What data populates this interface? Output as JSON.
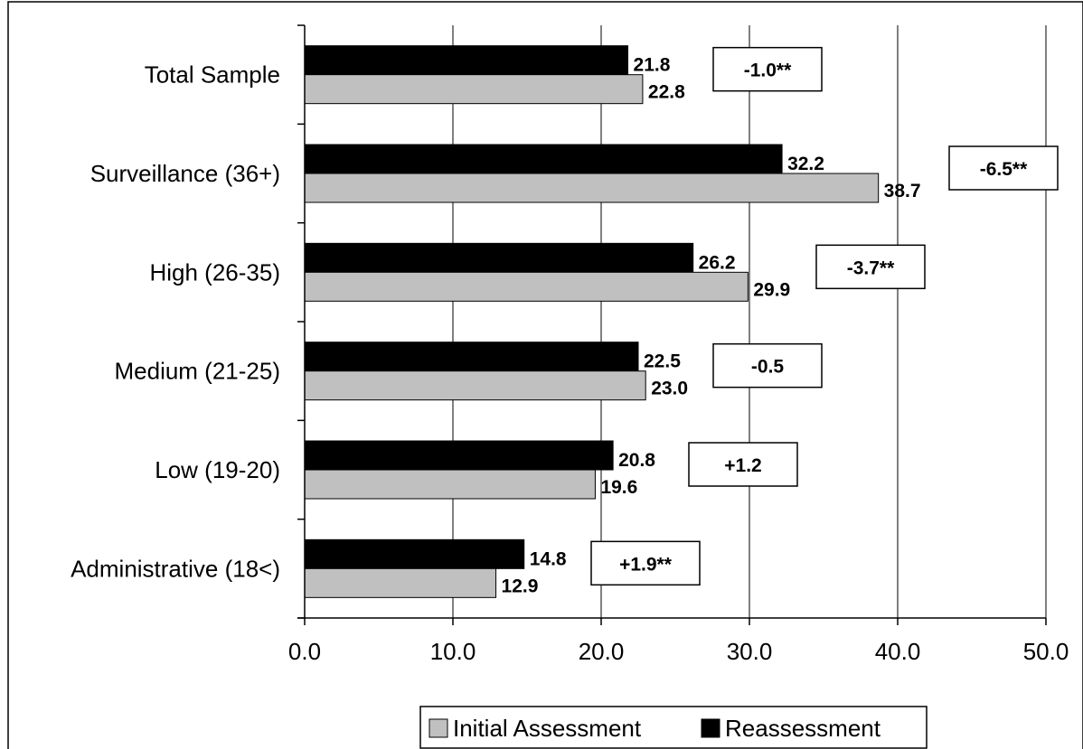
{
  "chart_data": {
    "type": "bar",
    "orientation": "horizontal",
    "categories": [
      "Total Sample",
      "Surveillance (36+)",
      "High (26-35)",
      "Medium (21-25)",
      "Low (19-20)",
      "Administrative (18<)"
    ],
    "series": [
      {
        "name": "Reassessment",
        "color": "#000000",
        "values": [
          21.8,
          32.2,
          26.2,
          22.5,
          20.8,
          14.8
        ],
        "labels": [
          "21.8",
          "32.2",
          "26.2",
          "22.5",
          "20.8",
          "14.8"
        ]
      },
      {
        "name": "Initial Assessment",
        "color": "#c0c0c0",
        "values": [
          22.8,
          38.7,
          29.9,
          23.0,
          19.6,
          12.9
        ],
        "labels": [
          "22.8",
          "38.7",
          "29.9",
          "23.0",
          "19.6",
          "12.9"
        ]
      }
    ],
    "annotations": [
      "-1.0**",
      "-6.5**",
      "-3.7**",
      "-0.5",
      "+1.2",
      "+1.9**"
    ],
    "xlim": [
      0,
      50
    ],
    "xticks": [
      "0.0",
      "10.0",
      "20.0",
      "30.0",
      "40.0",
      "50.0"
    ],
    "grid": true,
    "legend": {
      "position": "bottom",
      "entries": [
        "Initial Assessment",
        "Reassessment"
      ]
    }
  }
}
